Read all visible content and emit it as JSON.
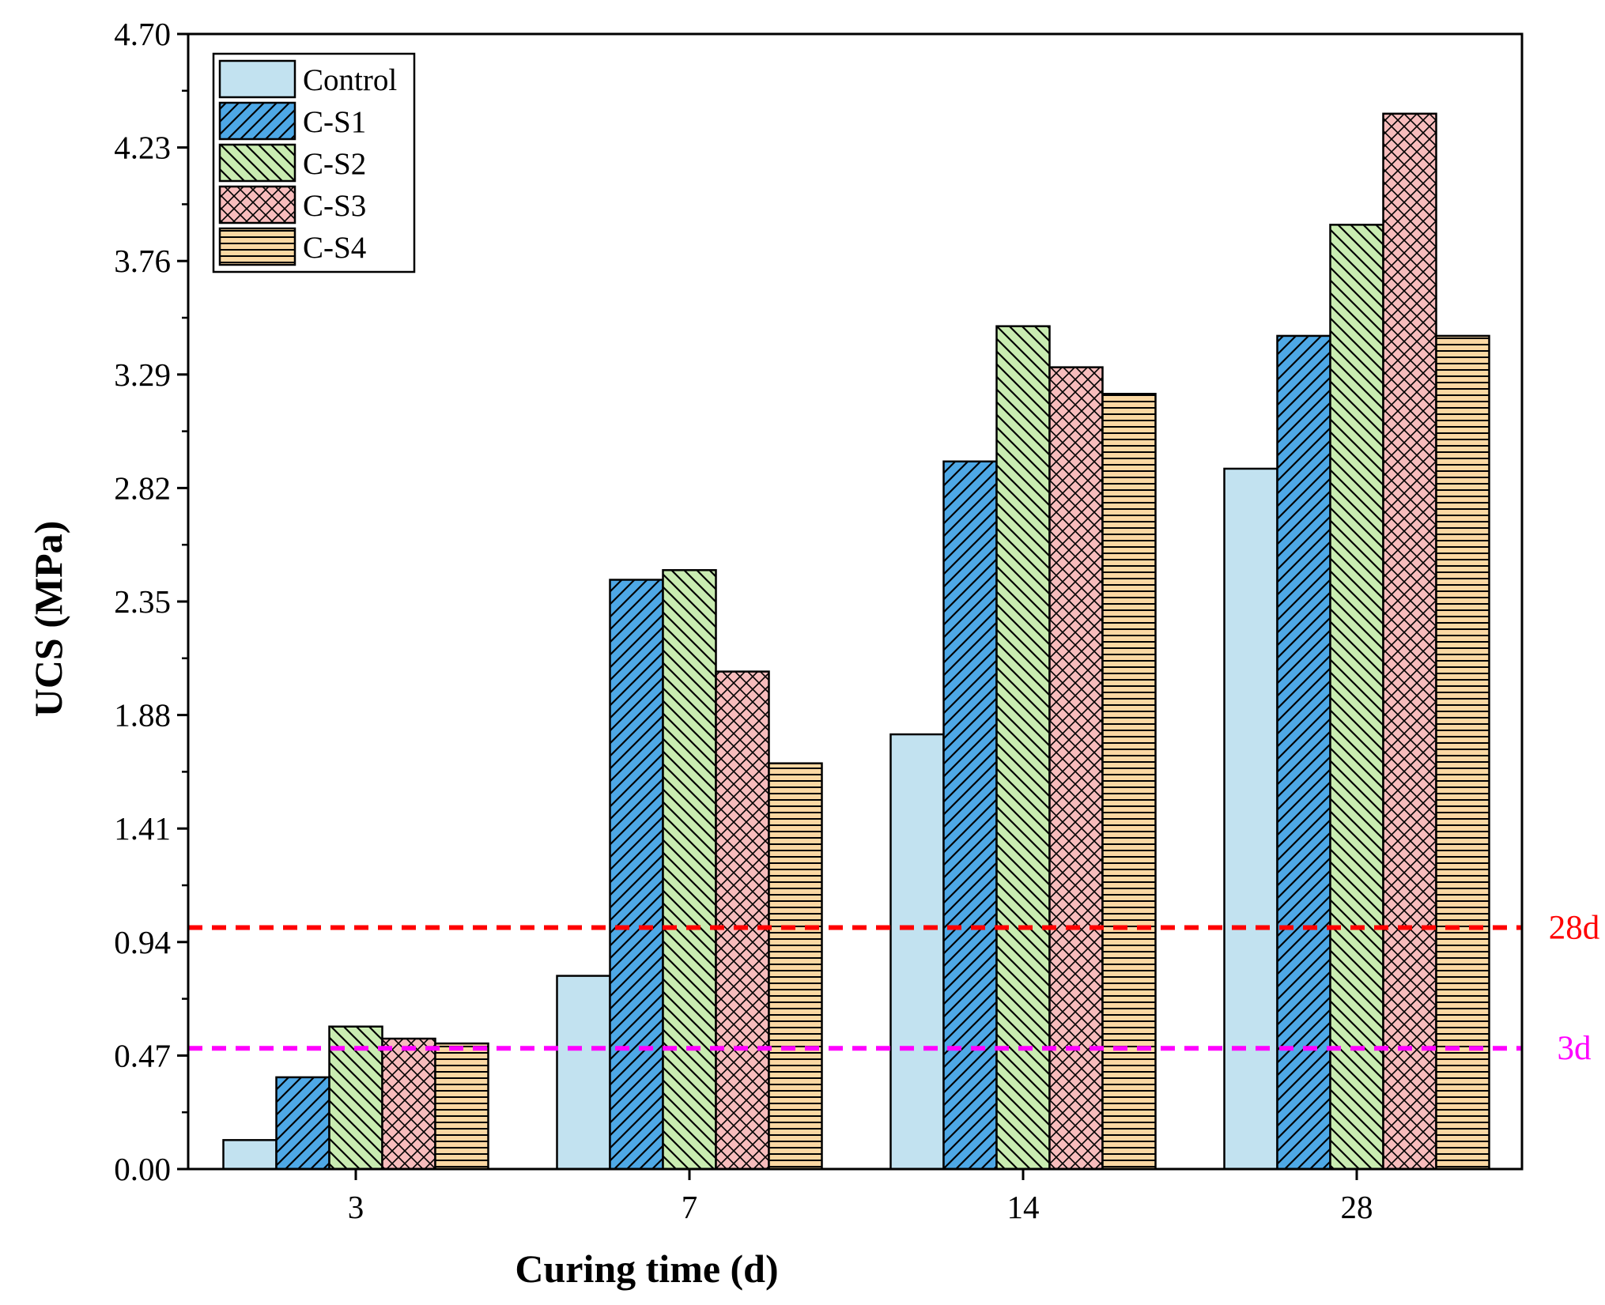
{
  "chart_data": {
    "type": "bar",
    "title": "",
    "xlabel": "Curing time (d)",
    "ylabel": "UCS (MPa)",
    "categories": [
      "3",
      "7",
      "14",
      "28"
    ],
    "ylim": [
      0,
      4.7
    ],
    "yticks": [
      "0.00",
      "0.47",
      "0.94",
      "1.41",
      "1.88",
      "2.35",
      "2.82",
      "3.29",
      "3.76",
      "4.23",
      "4.70"
    ],
    "legend_position": "top-left",
    "grid": false,
    "series": [
      {
        "name": "Control",
        "values": [
          0.12,
          0.8,
          1.8,
          2.9
        ],
        "fill": "#c2e2f0",
        "pattern": "none"
      },
      {
        "name": "C-S1",
        "values": [
          0.38,
          2.44,
          2.93,
          3.45
        ],
        "fill": "#4ea8e6",
        "pattern": "diagonal-up"
      },
      {
        "name": "C-S2",
        "values": [
          0.59,
          2.48,
          3.49,
          3.91
        ],
        "fill": "#c9ecb1",
        "pattern": "diagonal-down"
      },
      {
        "name": "C-S3",
        "values": [
          0.54,
          2.06,
          3.32,
          4.37
        ],
        "fill": "#f7bcbc",
        "pattern": "crosshatch"
      },
      {
        "name": "C-S4",
        "values": [
          0.52,
          1.68,
          3.21,
          3.45
        ],
        "fill": "#fbd8a3",
        "pattern": "horizontal"
      }
    ],
    "reference_lines": [
      {
        "label": "28d",
        "value": 1.0,
        "color": "#ff0000"
      },
      {
        "label": "3d",
        "value": 0.5,
        "color": "#ff00ff"
      }
    ]
  }
}
